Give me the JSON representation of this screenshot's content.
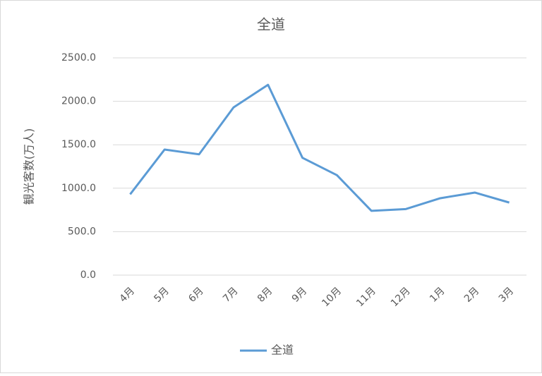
{
  "chart_data": {
    "type": "line",
    "title": "全道",
    "y_label": "観光客数(万人)",
    "categories": [
      "4月",
      "5月",
      "6月",
      "7月",
      "8月",
      "9月",
      "10月",
      "11月",
      "12月",
      "1月",
      "2月",
      "3月"
    ],
    "series": [
      {
        "name": "全道",
        "color": "#5b9bd5",
        "values": [
          930,
          1445,
          1390,
          1930,
          2190,
          1350,
          1150,
          740,
          760,
          885,
          950,
          835
        ]
      }
    ],
    "ylim": [
      0,
      2500
    ],
    "yticks": [
      {
        "value": 0,
        "label": "0.0"
      },
      {
        "value": 500,
        "label": "500.0"
      },
      {
        "value": 1000,
        "label": "1000.0"
      },
      {
        "value": 1500,
        "label": "1500.0"
      },
      {
        "value": 2000,
        "label": "2000.0"
      },
      {
        "value": 2500,
        "label": "2500.0"
      }
    ],
    "grid": true,
    "legend": "bottom"
  }
}
